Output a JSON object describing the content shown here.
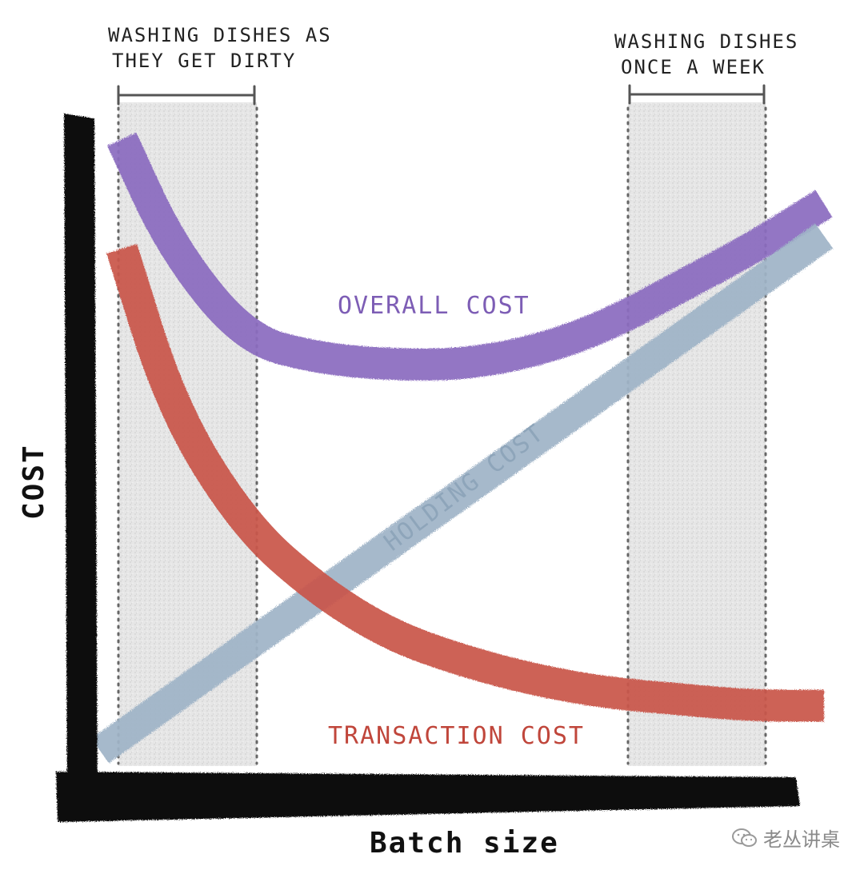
{
  "chart_data": {
    "type": "line",
    "xlabel": "Batch size",
    "ylabel": "COST",
    "xlim": [
      0,
      100
    ],
    "ylim": [
      0,
      100
    ],
    "grid": false,
    "series": [
      {
        "name": "OVERALL COST",
        "color": "#8b6bbf",
        "x": [
          3,
          10,
          20,
          30,
          40,
          50,
          60,
          70,
          80,
          90,
          100
        ],
        "y": [
          97,
          80,
          66,
          63,
          62,
          62,
          64,
          68,
          74,
          80,
          87
        ]
      },
      {
        "name": "HOLDING COST",
        "color": "#9fb4c7",
        "x": [
          0,
          10,
          20,
          30,
          40,
          50,
          60,
          70,
          80,
          90,
          100
        ],
        "y": [
          2,
          10,
          18,
          26,
          34,
          42,
          50,
          58,
          66,
          74,
          82
        ]
      },
      {
        "name": "TRANSACTION COST",
        "color": "#c9554a",
        "x": [
          3,
          10,
          20,
          30,
          40,
          50,
          60,
          70,
          80,
          90,
          100
        ],
        "y": [
          80,
          55,
          37,
          27,
          20,
          16,
          13,
          11,
          10,
          9,
          9
        ]
      }
    ],
    "bands": [
      {
        "label": "WASHING DISHES AS THEY GET DIRTY",
        "x": [
          3,
          21
        ]
      },
      {
        "label": "WASHING DISHES ONCE A WEEK",
        "x": [
          75,
          94
        ]
      }
    ]
  },
  "annotations": {
    "left_band_line1": "WASHING DISHES AS",
    "left_band_line2": "THEY GET DIRTY",
    "right_band_line1": "WASHING DISHES",
    "right_band_line2": "ONCE A WEEK"
  },
  "watermark": {
    "text": "老丛讲桌",
    "icon": "wechat-icon"
  }
}
